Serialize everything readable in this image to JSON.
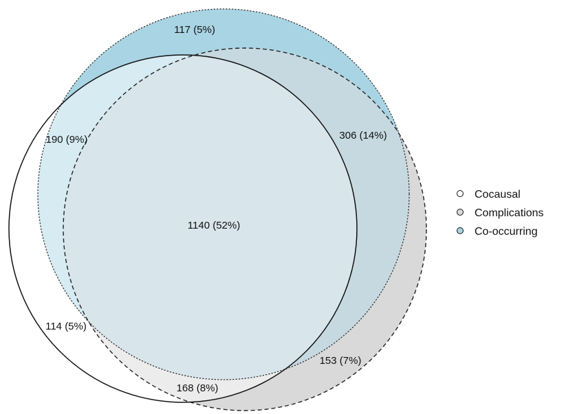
{
  "sets": [
    {
      "name": "Cocausal",
      "color": "#ffffff",
      "stroke": "solid"
    },
    {
      "name": "Complications",
      "color": "#d9d9d9",
      "stroke": "dashed"
    },
    {
      "name": "Co-occurring",
      "color": "#a9d4e3",
      "stroke": "dotted"
    }
  ],
  "regions": [
    {
      "sets": [
        "Co-occurring"
      ],
      "label": "117 (5%)",
      "count": 117,
      "percent": 5
    },
    {
      "sets": [
        "Cocausal",
        "Co-occurring"
      ],
      "label": "190 (9%)",
      "count": 190,
      "percent": 9
    },
    {
      "sets": [
        "Complications",
        "Co-occurring"
      ],
      "label": "306 (14%)",
      "count": 306,
      "percent": 14
    },
    {
      "sets": [
        "Cocausal",
        "Complications",
        "Co-occurring"
      ],
      "label": "1140 (52%)",
      "count": 1140,
      "percent": 52
    },
    {
      "sets": [
        "Cocausal"
      ],
      "label": "114 (5%)",
      "count": 114,
      "percent": 5
    },
    {
      "sets": [
        "Complications"
      ],
      "label": "153 (7%)",
      "count": 153,
      "percent": 7
    },
    {
      "sets": [
        "Cocausal",
        "Complications"
      ],
      "label": "168 (8%)",
      "count": 168,
      "percent": 8
    }
  ],
  "legend": {
    "items": [
      {
        "label": "Cocausal",
        "color": "#ffffff"
      },
      {
        "label": "Complications",
        "color": "#d9d9d9"
      },
      {
        "label": "Co-occurring",
        "color": "#a9d4e3"
      }
    ],
    "position": "right"
  }
}
